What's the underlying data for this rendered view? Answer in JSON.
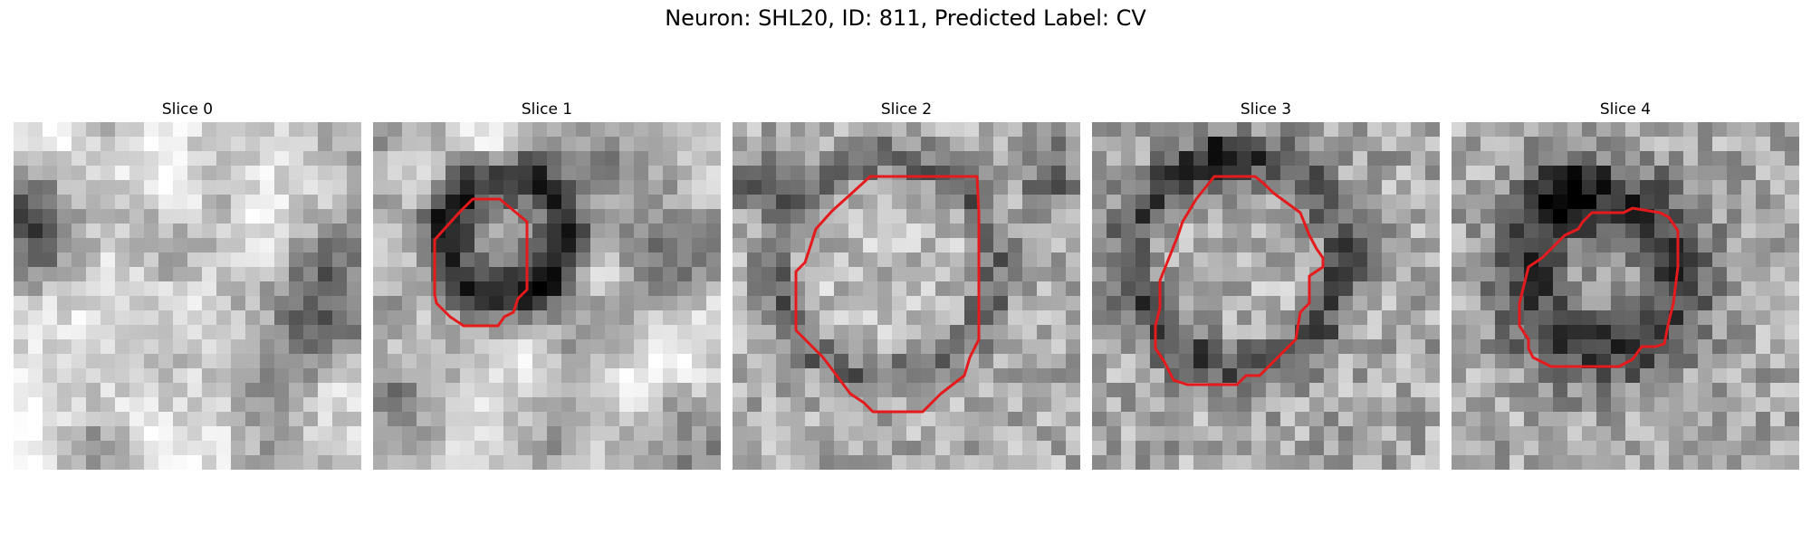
{
  "figure": {
    "title": "Neuron: SHL20, ID: 811, Predicted Label: CV"
  },
  "panels": [
    {
      "title": "Slice 0",
      "has_contour": false
    },
    {
      "title": "Slice 1",
      "has_contour": true
    },
    {
      "title": "Slice 2",
      "has_contour": true
    },
    {
      "title": "Slice 3",
      "has_contour": true
    },
    {
      "title": "Slice 4",
      "has_contour": true
    }
  ],
  "contour_color": "#e41a1c",
  "colormap": "grayscale"
}
